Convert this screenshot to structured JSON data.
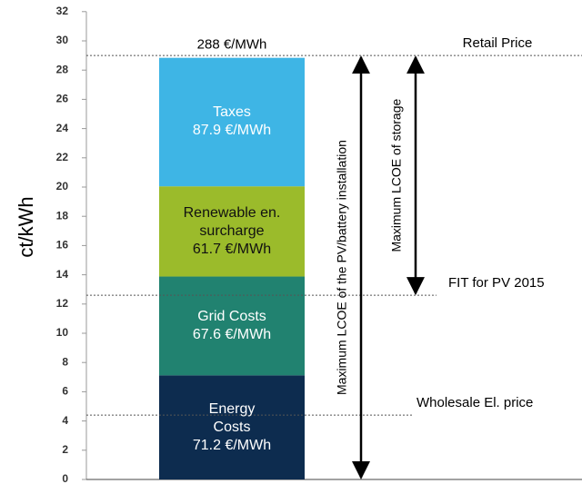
{
  "chart_data": {
    "type": "stacked-bar",
    "y_label": "ct/kWh",
    "ylim": [
      0,
      32
    ],
    "yticks": [
      0,
      2,
      4,
      6,
      8,
      10,
      12,
      14,
      16,
      18,
      20,
      22,
      24,
      26,
      28,
      30,
      32
    ],
    "series": [
      {
        "name": "Energy Costs",
        "color": "#0d2c4f",
        "values": [
          7.12
        ],
        "value_labels": [
          "71.2 €/MWh"
        ]
      },
      {
        "name": "Grid Costs",
        "color": "#218270",
        "values": [
          6.76
        ],
        "value_labels": [
          "67.6 €/MWh"
        ]
      },
      {
        "name": "Renewable en. surcharge",
        "color": "#9bbb2b",
        "values": [
          6.17
        ],
        "value_labels": [
          "61.7 €/MWh"
        ]
      },
      {
        "name": "Taxes",
        "color": "#3eb5e5",
        "values": [
          8.79
        ],
        "value_labels": [
          "87.9 €/MWh"
        ]
      }
    ],
    "total": 28.84,
    "total_label": "288 €/MWh",
    "reference_lines": [
      {
        "label": "Retail Price",
        "value": 29
      },
      {
        "label": "FIT for PV 2015",
        "value": 12.6
      },
      {
        "label": "Wholesale El. price",
        "value": 4.4
      }
    ],
    "arrows": [
      {
        "label": "Maximum LCOE of the PV/battery installation",
        "from": 29,
        "to": 0
      },
      {
        "label": "Maximum LCOE of storage",
        "from": 29,
        "to": 12.6
      }
    ]
  }
}
